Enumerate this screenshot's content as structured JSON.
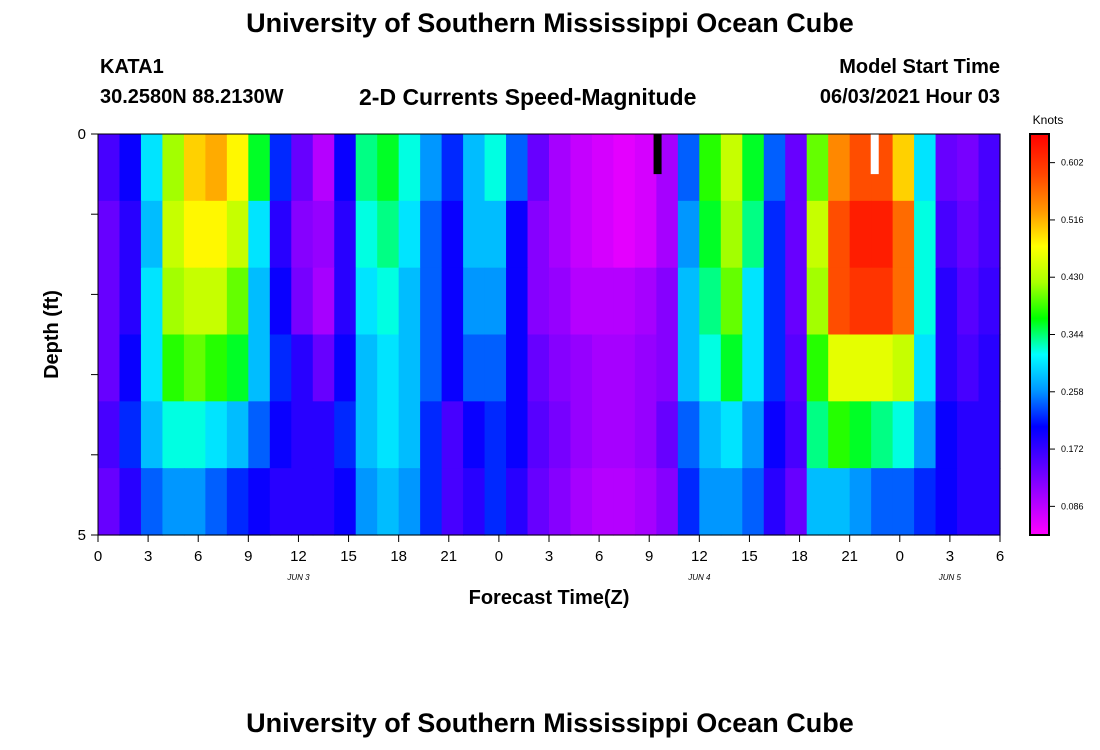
{
  "header": {
    "title": "University of Southern Mississippi Ocean Cube",
    "station": "KATA1",
    "coords": "30.2580N  88.2130W",
    "subtitle": "2-D Currents Speed-Magnitude",
    "start_label": "Model Start Time",
    "start_value": "06/03/2021 Hour 03"
  },
  "footer": {
    "title": "University of Southern Mississippi Ocean Cube"
  },
  "chart_data": {
    "type": "heatmap",
    "title": "2-D Currents Speed-Magnitude",
    "xlabel": "Forecast Time(Z)",
    "ylabel": "Depth (ft)",
    "x_ticks": [
      "0",
      "3",
      "6",
      "9",
      "12",
      "15",
      "18",
      "21",
      "0",
      "3",
      "6",
      "9",
      "12",
      "15",
      "18",
      "21",
      "0",
      "3",
      "6"
    ],
    "y_ticks": [
      "0",
      "5"
    ],
    "date_labels": [
      {
        "label": "JUN 3",
        "hour": 12
      },
      {
        "label": "JUN 4",
        "hour": 36
      },
      {
        "label": "JUN 5",
        "hour": 51
      }
    ],
    "x_range_hours": [
      0,
      54
    ],
    "depth_range_ft": [
      0,
      5
    ],
    "depth_levels": 5,
    "colorbar": {
      "title": "Knots",
      "min": 0.043,
      "max": 0.645,
      "ticks": [
        "0.602",
        "0.516",
        "0.430",
        "0.344",
        "0.258",
        "0.172",
        "0.086"
      ],
      "tick_values": [
        0.602,
        0.516,
        0.43,
        0.344,
        0.258,
        0.172,
        0.086
      ]
    },
    "values": [
      [
        0.16,
        0.2,
        0.3,
        0.42,
        0.5,
        0.52,
        0.48,
        0.36,
        0.22,
        0.14,
        0.09,
        0.2,
        0.34,
        0.36,
        0.32,
        0.26,
        0.22,
        0.28,
        0.32,
        0.24,
        0.14,
        0.1,
        0.08,
        0.07,
        0.06,
        0.07,
        0.1,
        0.24,
        0.38,
        0.44,
        0.36,
        0.24,
        0.14,
        0.4,
        0.54,
        0.58,
        0.58,
        0.5,
        0.3,
        0.14,
        0.13,
        0.16
      ],
      [
        0.14,
        0.18,
        0.28,
        0.44,
        0.48,
        0.48,
        0.44,
        0.3,
        0.18,
        0.12,
        0.11,
        0.18,
        0.32,
        0.34,
        0.3,
        0.24,
        0.2,
        0.28,
        0.28,
        0.2,
        0.12,
        0.1,
        0.08,
        0.07,
        0.06,
        0.07,
        0.1,
        0.26,
        0.36,
        0.42,
        0.34,
        0.22,
        0.14,
        0.44,
        0.58,
        0.62,
        0.62,
        0.56,
        0.32,
        0.16,
        0.14,
        0.16
      ],
      [
        0.14,
        0.18,
        0.3,
        0.42,
        0.44,
        0.44,
        0.4,
        0.28,
        0.2,
        0.13,
        0.1,
        0.18,
        0.3,
        0.32,
        0.28,
        0.24,
        0.2,
        0.26,
        0.26,
        0.2,
        0.12,
        0.11,
        0.09,
        0.09,
        0.09,
        0.1,
        0.12,
        0.28,
        0.34,
        0.4,
        0.3,
        0.22,
        0.14,
        0.42,
        0.58,
        0.6,
        0.6,
        0.56,
        0.32,
        0.18,
        0.15,
        0.17
      ],
      [
        0.14,
        0.2,
        0.3,
        0.38,
        0.4,
        0.38,
        0.36,
        0.28,
        0.22,
        0.18,
        0.14,
        0.2,
        0.28,
        0.3,
        0.28,
        0.24,
        0.2,
        0.24,
        0.24,
        0.2,
        0.14,
        0.12,
        0.11,
        0.1,
        0.1,
        0.11,
        0.12,
        0.28,
        0.32,
        0.36,
        0.3,
        0.22,
        0.15,
        0.38,
        0.46,
        0.46,
        0.46,
        0.44,
        0.3,
        0.18,
        0.16,
        0.18
      ],
      [
        0.16,
        0.22,
        0.28,
        0.32,
        0.32,
        0.3,
        0.28,
        0.24,
        0.2,
        0.18,
        0.18,
        0.22,
        0.28,
        0.3,
        0.28,
        0.22,
        0.16,
        0.2,
        0.22,
        0.2,
        0.15,
        0.13,
        0.11,
        0.1,
        0.1,
        0.11,
        0.14,
        0.24,
        0.28,
        0.3,
        0.26,
        0.2,
        0.16,
        0.34,
        0.38,
        0.36,
        0.34,
        0.32,
        0.26,
        0.2,
        0.18,
        0.18
      ],
      [
        0.14,
        0.18,
        0.24,
        0.26,
        0.26,
        0.24,
        0.22,
        0.2,
        0.18,
        0.18,
        0.18,
        0.2,
        0.26,
        0.28,
        0.26,
        0.22,
        0.16,
        0.18,
        0.22,
        0.18,
        0.14,
        0.12,
        0.1,
        0.09,
        0.09,
        0.1,
        0.12,
        0.22,
        0.26,
        0.26,
        0.24,
        0.18,
        0.14,
        0.28,
        0.28,
        0.26,
        0.24,
        0.24,
        0.22,
        0.2,
        0.18,
        0.18
      ]
    ],
    "markers": [
      {
        "hour": 33.5,
        "depth_from": 0,
        "depth_to": 0.5,
        "color": "#000000"
      },
      {
        "hour": 46.5,
        "depth_from": 0,
        "depth_to": 0.5,
        "color": "#ffffff"
      }
    ]
  }
}
